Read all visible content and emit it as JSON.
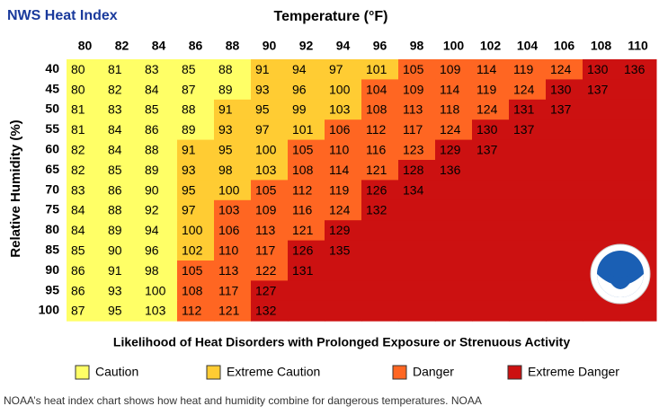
{
  "title": "NWS Heat Index",
  "column_title": "Temperature (°F)",
  "row_title": "Relative Humidity (%)",
  "columns": [
    80,
    82,
    84,
    86,
    88,
    90,
    92,
    94,
    96,
    98,
    100,
    102,
    104,
    106,
    108,
    110
  ],
  "rows": [
    {
      "humidity": 40,
      "values": [
        80,
        81,
        83,
        85,
        88,
        91,
        94,
        97,
        101,
        105,
        109,
        114,
        119,
        124,
        130,
        136
      ],
      "levels": [
        0,
        0,
        0,
        0,
        0,
        1,
        1,
        1,
        1,
        2,
        2,
        2,
        2,
        2,
        3,
        3
      ]
    },
    {
      "humidity": 45,
      "values": [
        80,
        82,
        84,
        87,
        89,
        93,
        96,
        100,
        104,
        109,
        114,
        119,
        124,
        130,
        137,
        null
      ],
      "levels": [
        0,
        0,
        0,
        0,
        0,
        1,
        1,
        1,
        2,
        2,
        2,
        2,
        2,
        3,
        3,
        3
      ]
    },
    {
      "humidity": 50,
      "values": [
        81,
        83,
        85,
        88,
        91,
        95,
        99,
        103,
        108,
        113,
        118,
        124,
        131,
        137,
        null,
        null
      ],
      "levels": [
        0,
        0,
        0,
        0,
        1,
        1,
        1,
        1,
        2,
        2,
        2,
        2,
        3,
        3,
        3,
        3
      ]
    },
    {
      "humidity": 55,
      "values": [
        81,
        84,
        86,
        89,
        93,
        97,
        101,
        106,
        112,
        117,
        124,
        130,
        137,
        null,
        null,
        null
      ],
      "levels": [
        0,
        0,
        0,
        0,
        1,
        1,
        1,
        2,
        2,
        2,
        2,
        3,
        3,
        3,
        3,
        3
      ]
    },
    {
      "humidity": 60,
      "values": [
        82,
        84,
        88,
        91,
        95,
        100,
        105,
        110,
        116,
        123,
        129,
        137,
        null,
        null,
        null,
        null
      ],
      "levels": [
        0,
        0,
        0,
        1,
        1,
        1,
        2,
        2,
        2,
        2,
        3,
        3,
        3,
        3,
        3,
        3
      ]
    },
    {
      "humidity": 65,
      "values": [
        82,
        85,
        89,
        93,
        98,
        103,
        108,
        114,
        121,
        128,
        136,
        null,
        null,
        null,
        null,
        null
      ],
      "levels": [
        0,
        0,
        0,
        1,
        1,
        1,
        2,
        2,
        2,
        3,
        3,
        3,
        3,
        3,
        3,
        3
      ]
    },
    {
      "humidity": 70,
      "values": [
        83,
        86,
        90,
        95,
        100,
        105,
        112,
        119,
        126,
        134,
        null,
        null,
        null,
        null,
        null,
        null
      ],
      "levels": [
        0,
        0,
        0,
        1,
        1,
        2,
        2,
        2,
        3,
        3,
        3,
        3,
        3,
        3,
        3,
        3
      ]
    },
    {
      "humidity": 75,
      "values": [
        84,
        88,
        92,
        97,
        103,
        109,
        116,
        124,
        132,
        null,
        null,
        null,
        null,
        null,
        null,
        null
      ],
      "levels": [
        0,
        0,
        0,
        1,
        2,
        2,
        2,
        2,
        3,
        3,
        3,
        3,
        3,
        3,
        3,
        3
      ]
    },
    {
      "humidity": 80,
      "values": [
        84,
        89,
        94,
        100,
        106,
        113,
        121,
        129,
        null,
        null,
        null,
        null,
        null,
        null,
        null,
        null
      ],
      "levels": [
        0,
        0,
        0,
        1,
        2,
        2,
        2,
        3,
        3,
        3,
        3,
        3,
        3,
        3,
        3,
        3
      ]
    },
    {
      "humidity": 85,
      "values": [
        85,
        90,
        96,
        102,
        110,
        117,
        126,
        135,
        null,
        null,
        null,
        null,
        null,
        null,
        null,
        null
      ],
      "levels": [
        0,
        0,
        0,
        1,
        2,
        2,
        3,
        3,
        3,
        3,
        3,
        3,
        3,
        3,
        3,
        3
      ]
    },
    {
      "humidity": 90,
      "values": [
        86,
        91,
        98,
        105,
        113,
        122,
        131,
        null,
        null,
        null,
        null,
        null,
        null,
        null,
        null,
        null
      ],
      "levels": [
        0,
        0,
        0,
        2,
        2,
        2,
        3,
        3,
        3,
        3,
        3,
        3,
        3,
        3,
        3,
        3
      ]
    },
    {
      "humidity": 95,
      "values": [
        86,
        93,
        100,
        108,
        117,
        127,
        null,
        null,
        null,
        null,
        null,
        null,
        null,
        null,
        null,
        null
      ],
      "levels": [
        0,
        0,
        0,
        2,
        2,
        3,
        3,
        3,
        3,
        3,
        3,
        3,
        3,
        3,
        3,
        3
      ]
    },
    {
      "humidity": 100,
      "values": [
        87,
        95,
        103,
        112,
        121,
        132,
        null,
        null,
        null,
        null,
        null,
        null,
        null,
        null,
        null,
        null
      ],
      "levels": [
        0,
        0,
        0,
        2,
        2,
        3,
        3,
        3,
        3,
        3,
        3,
        3,
        3,
        3,
        3,
        3
      ]
    }
  ],
  "legend_title": "Likelihood of Heat Disorders with Prolonged Exposure or Strenuous Activity",
  "legend": [
    {
      "label": "Caution",
      "color": "#ffff66"
    },
    {
      "label": "Extreme Caution",
      "color": "#ffcc33"
    },
    {
      "label": "Danger",
      "color": "#ff6622"
    },
    {
      "label": "Extreme Danger",
      "color": "#cc1111"
    }
  ],
  "caption": "NOAA’s heat index chart shows how heat and humidity combine for dangerous temperatures. NOAA"
}
